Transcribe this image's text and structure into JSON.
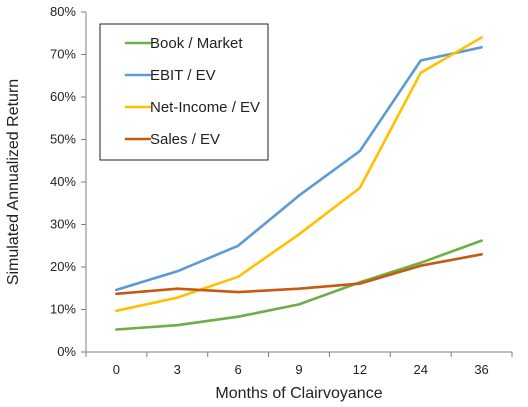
{
  "chart_data": {
    "type": "line",
    "title": "",
    "xlabel": "Months of Clairvoyance",
    "ylabel": "Simulated Annualized Return",
    "categories": [
      "0",
      "3",
      "6",
      "9",
      "12",
      "24",
      "36"
    ],
    "ylim": [
      0,
      80
    ],
    "yticks": [
      0,
      10,
      20,
      30,
      40,
      50,
      60,
      70,
      80
    ],
    "ytick_suffix": "%",
    "grid": false,
    "legend_position": "top-left",
    "series": [
      {
        "name": "Book / Market",
        "color": "#70ad47",
        "values": [
          5.3,
          6.3,
          8.3,
          11.2,
          16.4,
          21.0,
          26.2
        ]
      },
      {
        "name": "EBIT / EV",
        "color": "#5b9bd5",
        "values": [
          14.6,
          19.0,
          25.0,
          36.8,
          47.3,
          68.6,
          71.7
        ]
      },
      {
        "name": "Net-Income / EV",
        "color": "#ffc000",
        "values": [
          9.7,
          12.8,
          17.7,
          27.7,
          38.6,
          65.7,
          74.0
        ]
      },
      {
        "name": "Sales / EV",
        "color": "#c55a11",
        "values": [
          13.7,
          14.9,
          14.1,
          14.9,
          16.1,
          20.3,
          23.0
        ]
      }
    ]
  }
}
